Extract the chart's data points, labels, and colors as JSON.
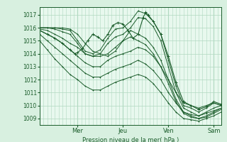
{
  "bg_color": "#d8f0e0",
  "plot_bg_color": "#e8f8ee",
  "grid_color": "#b0d8c0",
  "line_color": "#1a5c2a",
  "ylabel_ticks": [
    1009,
    1010,
    1011,
    1012,
    1013,
    1014,
    1015,
    1016,
    1017
  ],
  "xlim": [
    0,
    144
  ],
  "ylim": [
    1008.5,
    1017.6
  ],
  "xlabel": "Pression niveau de la mer( hPa )",
  "xtick_positions": [
    30,
    66,
    102,
    138
  ],
  "xtick_labels": [
    "Mer",
    "Jeu",
    "Ven",
    "Sam"
  ],
  "lines": [
    [
      0,
      1016.0,
      6,
      1016.0,
      12,
      1016.0,
      18,
      1015.9,
      24,
      1015.8,
      30,
      1015.0,
      36,
      1014.2,
      42,
      1014.0,
      48,
      1014.3,
      54,
      1015.2,
      60,
      1015.9,
      66,
      1016.0,
      72,
      1016.5,
      78,
      1017.3,
      84,
      1017.1,
      90,
      1016.5,
      96,
      1015.5,
      102,
      1013.5,
      108,
      1011.5,
      114,
      1010.0,
      120,
      1009.8,
      126,
      1009.5,
      132,
      1009.8,
      138,
      1010.2,
      144,
      1010.0
    ],
    [
      0,
      1016.0,
      6,
      1016.0,
      12,
      1015.9,
      18,
      1015.7,
      24,
      1015.5,
      30,
      1014.8,
      36,
      1014.0,
      42,
      1013.8,
      48,
      1014.0,
      54,
      1014.8,
      60,
      1015.3,
      66,
      1015.5,
      72,
      1016.0,
      78,
      1016.8,
      84,
      1016.7,
      90,
      1016.1,
      96,
      1015.0,
      102,
      1013.0,
      108,
      1011.0,
      114,
      1009.8,
      120,
      1009.5,
      126,
      1009.2,
      132,
      1009.5,
      138,
      1009.8,
      144,
      1010.0
    ],
    [
      0,
      1015.8,
      6,
      1015.5,
      12,
      1015.2,
      18,
      1014.8,
      24,
      1014.3,
      30,
      1013.8,
      36,
      1013.3,
      42,
      1013.0,
      48,
      1013.0,
      54,
      1013.5,
      60,
      1013.8,
      66,
      1014.0,
      72,
      1014.2,
      78,
      1014.5,
      84,
      1014.3,
      90,
      1013.8,
      96,
      1013.0,
      102,
      1012.0,
      108,
      1011.0,
      114,
      1010.2,
      120,
      1010.0,
      126,
      1009.8,
      132,
      1010.0,
      138,
      1010.2,
      144,
      1010.0
    ],
    [
      0,
      1015.5,
      6,
      1015.0,
      12,
      1014.5,
      18,
      1014.0,
      24,
      1013.5,
      30,
      1013.0,
      36,
      1012.5,
      42,
      1012.2,
      48,
      1012.2,
      54,
      1012.5,
      60,
      1012.8,
      66,
      1013.0,
      72,
      1013.2,
      78,
      1013.5,
      84,
      1013.2,
      90,
      1012.7,
      96,
      1012.0,
      102,
      1011.0,
      108,
      1010.2,
      114,
      1009.5,
      120,
      1009.3,
      126,
      1009.2,
      132,
      1009.4,
      138,
      1009.6,
      144,
      1009.8
    ],
    [
      0,
      1015.0,
      6,
      1014.3,
      12,
      1013.6,
      18,
      1013.0,
      24,
      1012.4,
      30,
      1012.0,
      36,
      1011.5,
      42,
      1011.2,
      48,
      1011.2,
      54,
      1011.5,
      60,
      1011.8,
      66,
      1012.0,
      72,
      1012.2,
      78,
      1012.4,
      84,
      1012.2,
      90,
      1011.7,
      96,
      1011.0,
      102,
      1010.2,
      108,
      1009.5,
      114,
      1009.0,
      120,
      1008.9,
      126,
      1008.8,
      132,
      1009.0,
      138,
      1009.2,
      144,
      1009.5
    ],
    [
      0,
      1016.0,
      6,
      1016.0,
      12,
      1016.0,
      18,
      1016.0,
      24,
      1015.9,
      30,
      1015.5,
      36,
      1014.8,
      42,
      1014.2,
      48,
      1014.0,
      54,
      1013.8,
      60,
      1014.2,
      66,
      1015.0,
      72,
      1015.8,
      78,
      1015.5,
      84,
      1015.2,
      90,
      1014.5,
      96,
      1013.5,
      102,
      1012.0,
      108,
      1010.5,
      114,
      1009.5,
      120,
      1009.2,
      126,
      1009.0,
      132,
      1009.2,
      138,
      1009.5,
      144,
      1009.8
    ],
    [
      0,
      1015.9,
      6,
      1015.8,
      12,
      1015.5,
      18,
      1015.2,
      24,
      1014.8,
      30,
      1014.5,
      36,
      1014.0,
      42,
      1013.8,
      48,
      1013.8,
      54,
      1014.0,
      60,
      1014.5,
      66,
      1015.0,
      72,
      1015.3,
      78,
      1015.0,
      84,
      1014.7,
      90,
      1014.0,
      96,
      1013.0,
      102,
      1011.7,
      108,
      1010.3,
      114,
      1009.4,
      120,
      1009.1,
      126,
      1009.0,
      132,
      1009.1,
      138,
      1009.4,
      144,
      1009.7
    ]
  ],
  "complex_line": [
    0,
    1015.8,
    6,
    1015.5,
    12,
    1015.2,
    18,
    1014.8,
    24,
    1014.3,
    28,
    1014.0,
    30,
    1014.1,
    34,
    1014.4,
    38,
    1015.0,
    42,
    1015.5,
    46,
    1015.3,
    50,
    1015.0,
    54,
    1015.5,
    58,
    1016.2,
    62,
    1016.4,
    66,
    1016.3,
    70,
    1015.8,
    74,
    1015.2,
    78,
    1015.5,
    82,
    1016.8,
    84,
    1017.2,
    86,
    1017.0,
    90,
    1016.5,
    96,
    1015.5,
    102,
    1013.8,
    108,
    1011.8,
    114,
    1010.3,
    120,
    1010.0,
    126,
    1009.7,
    132,
    1009.9,
    138,
    1010.3,
    144,
    1010.1
  ]
}
